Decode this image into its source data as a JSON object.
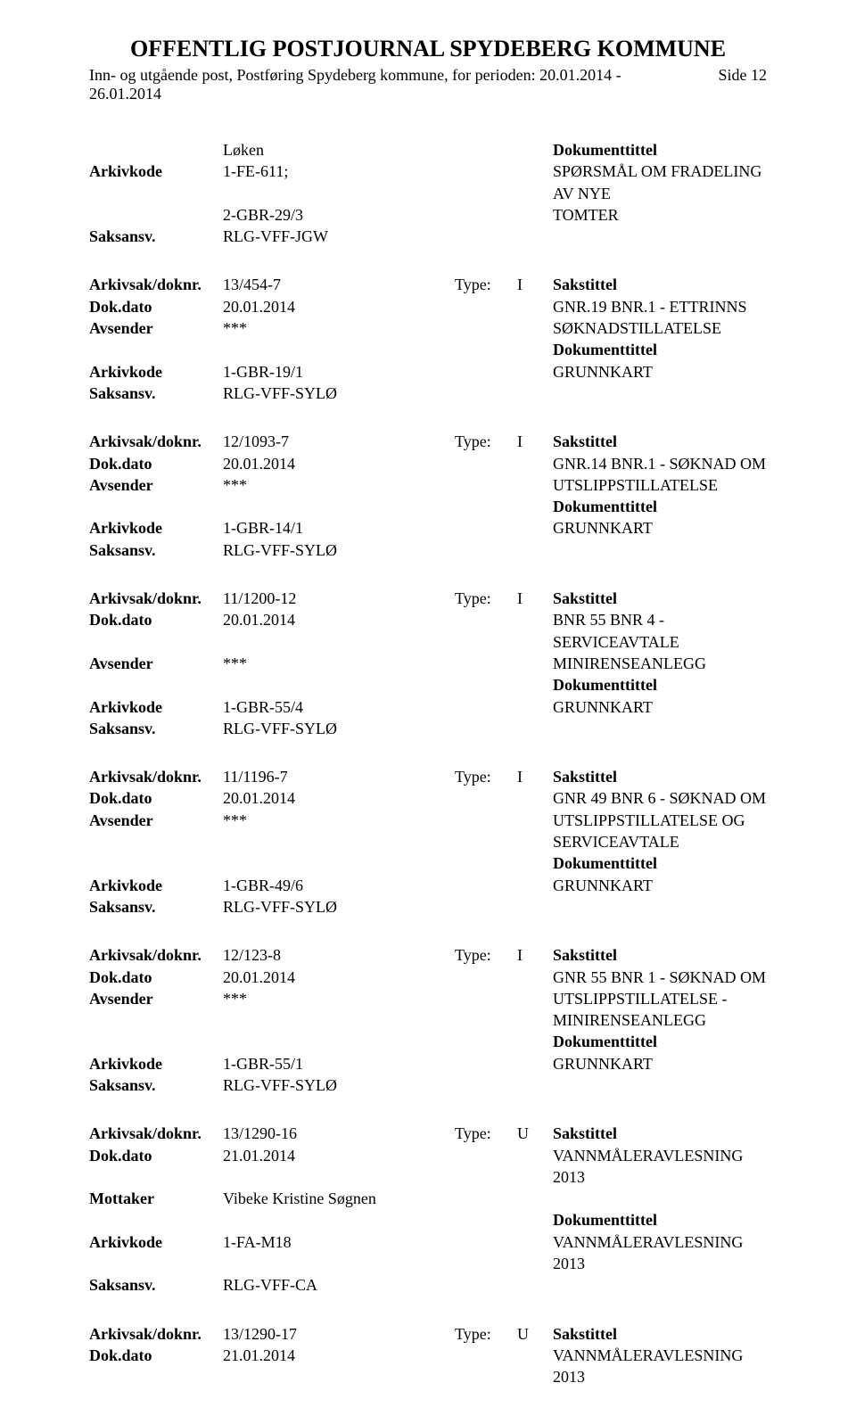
{
  "page": {
    "title": "OFFENTLIG POSTJOURNAL SPYDEBERG KOMMUNE",
    "subtitle_line1": "Inn- og utgående post, Postføring Spydeberg kommune, for perioden: 20.01.2014 -",
    "subtitle_line2": "26.01.2014",
    "side_label": "Side 12"
  },
  "labels": {
    "arkivkode": "Arkivkode",
    "saksansv": "Saksansv.",
    "arkivsak": "Arkivsak/doknr.",
    "dokdato": "Dok.dato",
    "avsender": "Avsender",
    "mottaker": "Mottaker",
    "type": "Type:",
    "sakstittel": "Sakstittel",
    "dokumenttittel": "Dokumenttittel"
  },
  "top_entry": {
    "line1_mid": "Løken",
    "arkivkode1": "1-FE-611;",
    "arkivkode2": "2-GBR-29/3",
    "saksansv": "RLG-VFF-JGW",
    "dok_right1": "SPØRSMÅL OM FRADELING AV NYE",
    "dok_right2": "TOMTER"
  },
  "entries": [
    {
      "arkivsak": "13/454-7",
      "type": "I",
      "dokdato": "20.01.2014",
      "sender_label": "Avsender",
      "sender": "***",
      "blank_lines": 1,
      "arkivkode": "1-GBR-19/1",
      "saksansv": "RLG-VFF-SYLØ",
      "right_lines": [
        "GNR.19 BNR.1 - ETTRINNS",
        "SØKNADSTILLATELSE",
        "Dokumenttittel",
        "GRUNNKART"
      ],
      "bold_right_idx": [
        2
      ]
    },
    {
      "arkivsak": "12/1093-7",
      "type": "I",
      "dokdato": "20.01.2014",
      "sender_label": "Avsender",
      "sender": "***",
      "blank_lines": 1,
      "arkivkode": "1-GBR-14/1",
      "saksansv": "RLG-VFF-SYLØ",
      "right_lines": [
        "GNR.14 BNR.1 - SØKNAD OM",
        "UTSLIPPSTILLATELSE",
        "Dokumenttittel",
        "GRUNNKART"
      ],
      "bold_right_idx": [
        2
      ]
    },
    {
      "arkivsak": "11/1200-12",
      "type": "I",
      "dokdato": "20.01.2014",
      "sender_label": "Avsender",
      "sender": "***",
      "blank_lines": 1,
      "arkivkode": "1-GBR-55/4",
      "saksansv": "RLG-VFF-SYLØ",
      "right_lines": [
        "BNR 55 BNR 4 - SERVICEAVTALE",
        "MINIRENSEANLEGG",
        "Dokumenttittel",
        "GRUNNKART"
      ],
      "bold_right_idx": [
        2
      ]
    },
    {
      "arkivsak": "11/1196-7",
      "type": "I",
      "dokdato": "20.01.2014",
      "sender_label": "Avsender",
      "sender": "***",
      "blank_lines": 2,
      "arkivkode": "1-GBR-49/6",
      "saksansv": "RLG-VFF-SYLØ",
      "right_lines": [
        "GNR 49 BNR 6 - SØKNAD OM",
        "UTSLIPPSTILLATELSE OG",
        "SERVICEAVTALE",
        "Dokumenttittel",
        "GRUNNKART"
      ],
      "bold_right_idx": [
        3
      ]
    },
    {
      "arkivsak": "12/123-8",
      "type": "I",
      "dokdato": "20.01.2014",
      "sender_label": "Avsender",
      "sender": "***",
      "blank_lines": 2,
      "arkivkode": "1-GBR-55/1",
      "saksansv": "RLG-VFF-SYLØ",
      "right_lines": [
        "GNR 55 BNR 1 - SØKNAD OM",
        "UTSLIPPSTILLATELSE -",
        "MINIRENSEANLEGG",
        "Dokumenttittel",
        "GRUNNKART"
      ],
      "bold_right_idx": [
        3
      ]
    },
    {
      "arkivsak": "13/1290-16",
      "type": "U",
      "dokdato": "21.01.2014",
      "sender_label": "Mottaker",
      "sender": "Vibeke Kristine Søgnen",
      "blank_lines": 1,
      "arkivkode": "1-FA-M18",
      "saksansv": "RLG-VFF-CA",
      "right_lines": [
        "VANNMÅLERAVLESNING 2013",
        "",
        "Dokumenttittel",
        "VANNMÅLERAVLESNING 2013"
      ],
      "bold_right_idx": [
        2
      ]
    }
  ],
  "last_entry": {
    "arkivsak": "13/1290-17",
    "type": "U",
    "dokdato": "21.01.2014",
    "right_line": "VANNMÅLERAVLESNING 2013"
  }
}
